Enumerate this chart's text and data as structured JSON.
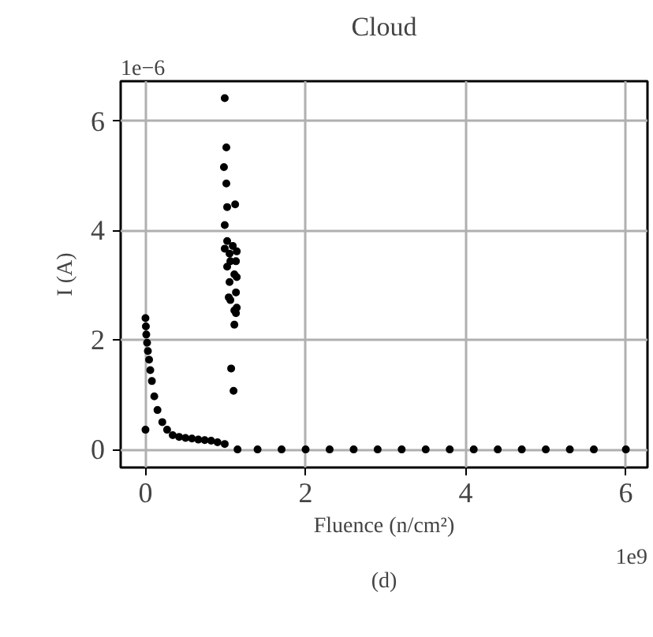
{
  "chart_data": {
    "type": "scatter",
    "title": "Cloud",
    "xlabel": "Fluence (n/cm²)",
    "ylabel": "I (A)",
    "annotations": [
      "1e−6",
      "1e9",
      "(d)"
    ],
    "xlim": [
      -0.31,
      6.27
    ],
    "ylim": [
      -0.33,
      6.73
    ],
    "xticks": [
      0,
      2,
      4,
      6
    ],
    "yticks": [
      0,
      2,
      4,
      6
    ],
    "grid": true,
    "marker": "circle",
    "series": [
      {
        "color": "#000000",
        "x": [
          0,
          0,
          0.005,
          0.01,
          0.02,
          0.03,
          0.045,
          0.06,
          0.08,
          0.11,
          0.15,
          0.21,
          0.27,
          0.34,
          0.42,
          0.5,
          0.58,
          0.66,
          0.74,
          0.82,
          0.9,
          0.99,
          0.99,
          1.01,
          0.98,
          1.01,
          1.12,
          1.02,
          0.99,
          1.02,
          1.09,
          0.99,
          1.05,
          1.13,
          1.02,
          1.11,
          1.05,
          1.13,
          1.06,
          1.11,
          1.11,
          1.07,
          1.1,
          1.14,
          1.06,
          1.14,
          1.04,
          1.14,
          1.13,
          1.15,
          1.4,
          1.7,
          2,
          2.3,
          2.6,
          2.9,
          3.2,
          3.5,
          3.8,
          4.1,
          4.4,
          4.7,
          5,
          5.3,
          5.6,
          6
        ],
        "values": [
          0.36,
          2.4,
          2.25,
          2.1,
          1.95,
          1.8,
          1.64,
          1.45,
          1.25,
          0.97,
          0.72,
          0.5,
          0.36,
          0.26,
          0.23,
          0.21,
          0.2,
          0.18,
          0.17,
          0.16,
          0.13,
          0.1,
          6.42,
          5.52,
          5.16,
          4.86,
          4.48,
          4.43,
          4.1,
          3.81,
          3.72,
          3.67,
          3.58,
          3.44,
          3.34,
          3.2,
          3.06,
          2.87,
          2.73,
          2.54,
          2.28,
          1.48,
          1.07,
          3.62,
          3.44,
          3.15,
          2.78,
          2.59,
          2.49,
          0,
          0,
          0,
          0,
          0,
          0,
          0,
          0,
          0,
          0,
          0,
          0,
          0,
          0,
          0,
          0,
          0
        ]
      }
    ]
  }
}
